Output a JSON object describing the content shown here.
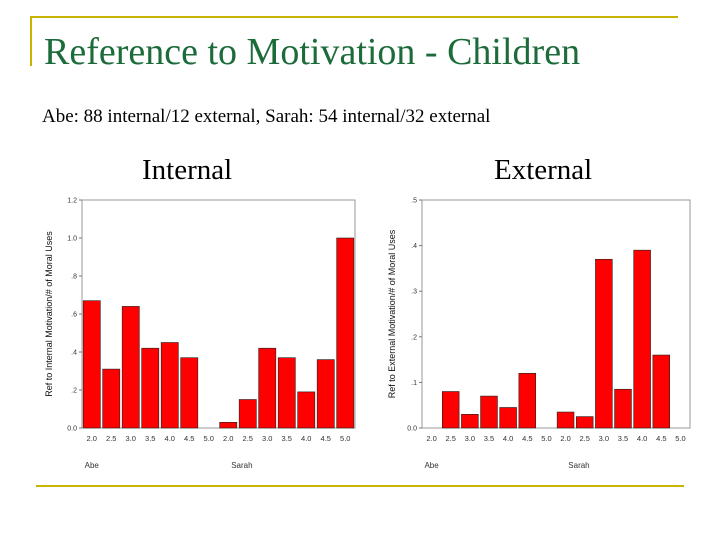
{
  "slide": {
    "title": "Reference to Motivation - Children",
    "subtitle": "Abe: 88 internal/12 external, Sarah: 54 internal/32 external",
    "left_label": "Internal",
    "right_label": "External"
  },
  "colors": {
    "frame": "#c8b400",
    "title": "#1c6b3a",
    "bar": "#ff0000"
  },
  "chart_data": [
    {
      "type": "bar",
      "title": "",
      "xlabel": "",
      "ylabel": "Ref to Internal Motivation/# of Moral Uses",
      "ylim": [
        0,
        1.2
      ],
      "yticks": [
        "0.0",
        ".2",
        ".4",
        ".6",
        ".8",
        "1.0",
        "1.2"
      ],
      "categories": [
        "2.0",
        "2.5",
        "3.0",
        "3.5",
        "4.0",
        "4.5",
        "5.0",
        "2.0",
        "2.5",
        "3.0",
        "3.5",
        "4.0",
        "4.5",
        "5.0"
      ],
      "groups": [
        "Abe",
        "Sarah"
      ],
      "values": [
        0.67,
        0.31,
        0.64,
        0.42,
        0.45,
        0.37,
        0,
        0.03,
        0.15,
        0.42,
        0.37,
        0.19,
        0.36,
        1.0
      ],
      "grid": false
    },
    {
      "type": "bar",
      "title": "",
      "xlabel": "",
      "ylabel": "Ref to External Motivation/# of Moral Uses",
      "ylim": [
        0,
        0.5
      ],
      "yticks": [
        "0.0",
        ".1",
        ".2",
        ".3",
        ".4",
        ".5"
      ],
      "categories": [
        "2.0",
        "2.5",
        "3.0",
        "3.5",
        "4.0",
        "4.5",
        "5.0",
        "2.0",
        "2.5",
        "3.0",
        "3.5",
        "4.0",
        "4.5",
        "5.0"
      ],
      "groups": [
        "Abe",
        "Sarah"
      ],
      "values": [
        0,
        0.08,
        0.03,
        0.07,
        0.045,
        0.12,
        0,
        0.035,
        0.025,
        0.37,
        0.085,
        0.39,
        0.16,
        0
      ],
      "grid": false
    }
  ]
}
